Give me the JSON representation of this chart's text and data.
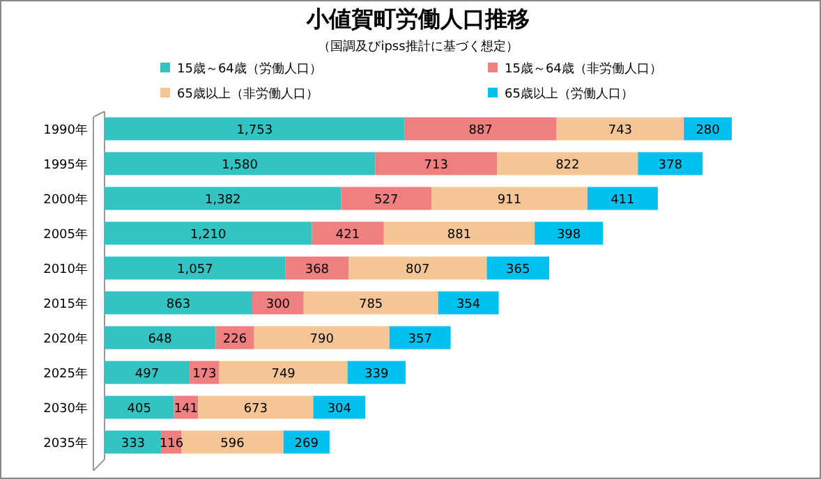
{
  "chart_data": {
    "type": "bar",
    "orientation": "horizontal",
    "stacked": true,
    "title": "小値賀町労働人口推移",
    "subtitle": "（国調及びipss推計に基づく想定）",
    "categories": [
      "1990年",
      "1995年",
      "2000年",
      "2005年",
      "2010年",
      "2015年",
      "2020年",
      "2025年",
      "2030年",
      "2035年"
    ],
    "series": [
      {
        "name": "15歳～64歳（労働人口）",
        "color": "#33c3c3",
        "values": [
          1753,
          1580,
          1382,
          1210,
          1057,
          863,
          648,
          497,
          405,
          333
        ],
        "value_labels": [
          "1,753",
          "1,580",
          "1,382",
          "1,210",
          "1,057",
          "863",
          "648",
          "497",
          "405",
          "333"
        ]
      },
      {
        "name": "15歳～64歳（非労働人口）",
        "color": "#f07f7f",
        "values": [
          887,
          713,
          527,
          421,
          368,
          300,
          226,
          173,
          141,
          116
        ]
      },
      {
        "name": "65歳以上（非労働人口）",
        "color": "#f5c595",
        "values": [
          743,
          822,
          911,
          881,
          807,
          785,
          790,
          749,
          673,
          596
        ]
      },
      {
        "name": "65歳以上（労働人口）",
        "color": "#00c0f0",
        "values": [
          280,
          378,
          411,
          398,
          365,
          354,
          357,
          339,
          304,
          269
        ]
      }
    ],
    "data_labels": true,
    "legend": "top"
  }
}
